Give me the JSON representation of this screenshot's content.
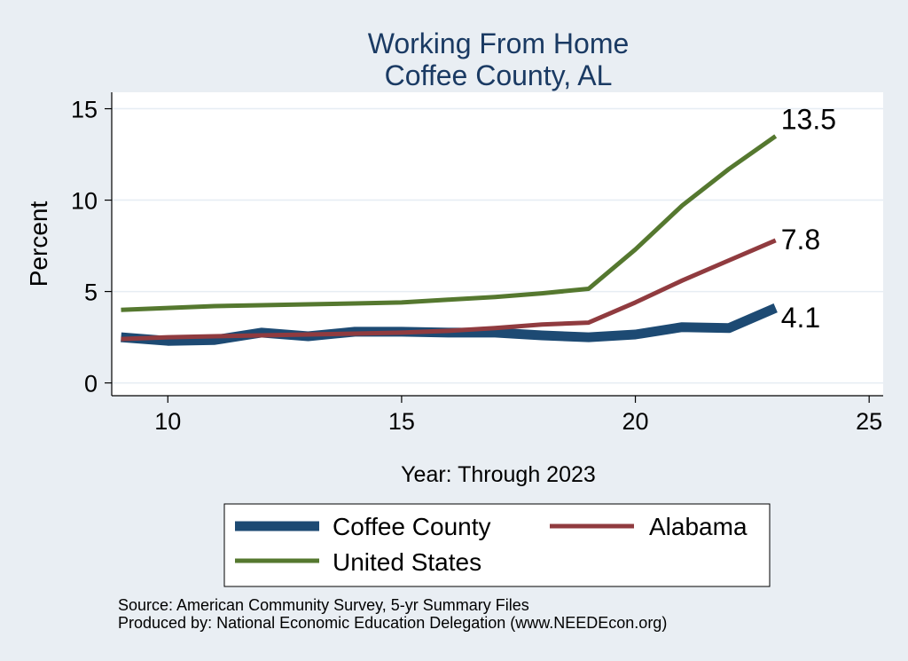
{
  "colors": {
    "background": "#e9eef3",
    "plot_background": "#ffffff",
    "title": "#1a3a63",
    "gridline": "#e6edf3",
    "coffee_county": "#1d4a73",
    "alabama": "#903b3f",
    "united_states": "#55782f"
  },
  "chart_data": {
    "type": "line",
    "title": "Working From Home",
    "subtitle": "Coffee County, AL",
    "xlabel": "Year: Through 2023",
    "ylabel": "Percent",
    "xlim": [
      8.8,
      25.3
    ],
    "ylim": [
      -0.7,
      15.9
    ],
    "xticks": [
      10,
      15,
      20,
      25
    ],
    "yticks": [
      0,
      5,
      10,
      15
    ],
    "grid": true,
    "legend_position": "bottom",
    "series": [
      {
        "name": "Coffee County",
        "color": "#1d4a73",
        "x": [
          9,
          10,
          11,
          12,
          13,
          14,
          15,
          16,
          17,
          18,
          19,
          20,
          21,
          22,
          23
        ],
        "values": [
          2.5,
          2.3,
          2.35,
          2.75,
          2.55,
          2.8,
          2.8,
          2.75,
          2.75,
          2.6,
          2.5,
          2.65,
          3.05,
          3.0,
          4.1
        ],
        "end_label": "4.1"
      },
      {
        "name": "Alabama",
        "color": "#903b3f",
        "x": [
          9,
          10,
          11,
          12,
          13,
          14,
          15,
          16,
          17,
          18,
          19,
          20,
          21,
          22,
          23
        ],
        "values": [
          2.4,
          2.5,
          2.55,
          2.6,
          2.65,
          2.7,
          2.75,
          2.85,
          3.0,
          3.2,
          3.3,
          4.4,
          5.6,
          6.7,
          7.8
        ],
        "end_label": "7.8"
      },
      {
        "name": "United States",
        "color": "#55782f",
        "x": [
          9,
          10,
          11,
          12,
          13,
          14,
          15,
          16,
          17,
          18,
          19,
          20,
          21,
          22,
          23
        ],
        "values": [
          4.0,
          4.1,
          4.2,
          4.25,
          4.3,
          4.35,
          4.4,
          4.55,
          4.7,
          4.9,
          5.15,
          7.3,
          9.7,
          11.7,
          13.5
        ],
        "end_label": "13.5"
      }
    ]
  },
  "source_notes": {
    "line1": "Source: American Community Survey, 5-yr Summary Files",
    "line2": "Produced by: National Economic Education Delegation (www.NEEDEcon.org)"
  }
}
